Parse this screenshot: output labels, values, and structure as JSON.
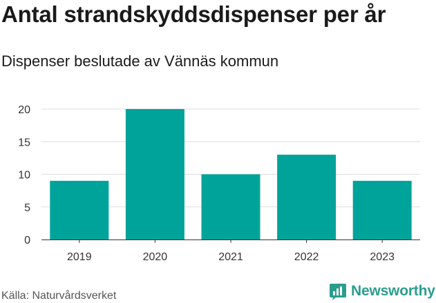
{
  "header": {
    "title": "Antal strandskyddsdispenser per år",
    "subtitle": "Dispenser beslutade av Vännäs kommun"
  },
  "footer": {
    "source": "Källa: Naturvårdsverket",
    "brand": "Newsworthy"
  },
  "colors": {
    "bar": "#00a39a",
    "grid": "#dddddd",
    "axis": "#333333",
    "brand": "#2a9d8f"
  },
  "chart_data": {
    "type": "bar",
    "title": "Antal strandskyddsdispenser per år",
    "subtitle": "Dispenser beslutade av Vännäs kommun",
    "xlabel": "",
    "ylabel": "",
    "categories": [
      "2019",
      "2020",
      "2021",
      "2022",
      "2023"
    ],
    "values": [
      9,
      20,
      10,
      13,
      9
    ],
    "ylim": [
      0,
      20
    ],
    "yticks": [
      0,
      5,
      10,
      15,
      20
    ],
    "grid": true,
    "legend": "none"
  }
}
